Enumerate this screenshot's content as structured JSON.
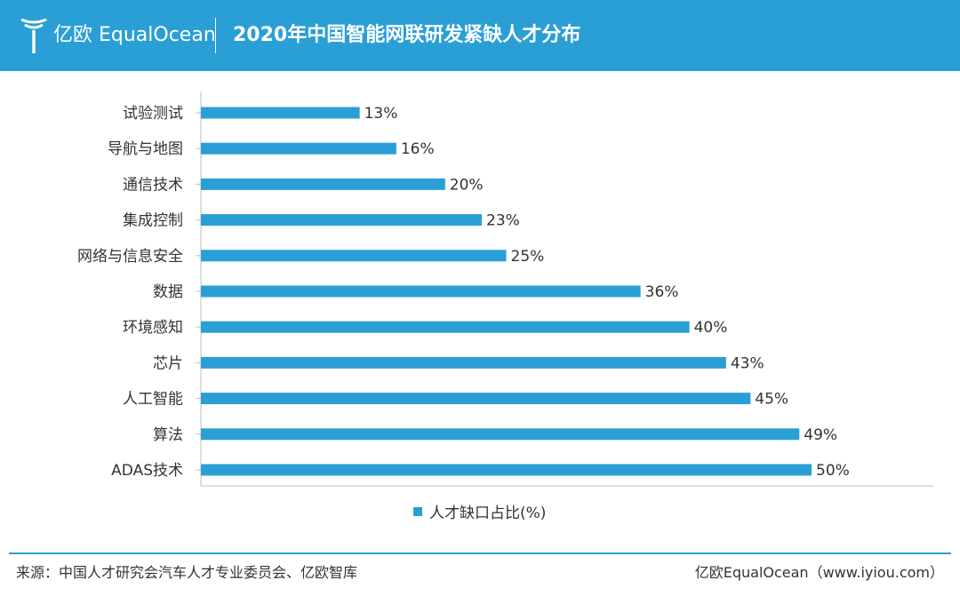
{
  "header": {
    "brand": "亿欧 EqualOcean",
    "title": "2020年中国智能网联研发紧缺人才分布"
  },
  "chart_data": {
    "type": "bar",
    "orientation": "horizontal",
    "categories": [
      "试验测试",
      "导航与地图",
      "通信技术",
      "集成控制",
      "网络与信息安全",
      "数据",
      "环境感知",
      "芯片",
      "人工智能",
      "算法",
      "ADAS技术"
    ],
    "series": [
      {
        "name": "人才缺口占比(%)",
        "values": [
          13,
          16,
          20,
          23,
          25,
          36,
          40,
          43,
          45,
          49,
          50
        ],
        "labels": [
          "13%",
          "16%",
          "20%",
          "23%",
          "25%",
          "36%",
          "40%",
          "43%",
          "45%",
          "49%",
          "50%"
        ]
      }
    ],
    "xlim": [
      0,
      60
    ],
    "grid": false,
    "legend": "bottom",
    "bar_color": "#2a9fd6"
  },
  "legend": {
    "label": "人才缺口占比(%)"
  },
  "footer": {
    "source": "来源：中国人才研究会汽车人才专业委员会、亿欧智库",
    "credit": "亿欧EqualOcean（www.iyiou.com）"
  },
  "colors": {
    "accent": "#2a9fd6",
    "text": "#333333"
  }
}
